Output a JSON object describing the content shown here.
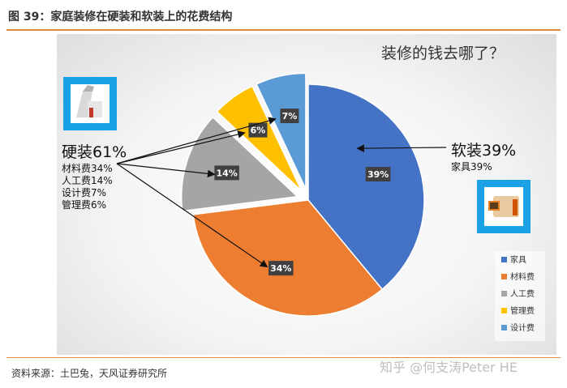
{
  "figure_title": "图 39：家庭装修在硬装和软装上的花费结构",
  "source_note": "资料来源：土巴兔，天风证券研究所",
  "watermark": "知乎 @何支涛Peter HE",
  "chart_data": {
    "type": "pie",
    "title": "装修的钱去哪了？",
    "slices": [
      {
        "name": "家具",
        "value": 39,
        "label": "39%",
        "color": "#4472C4",
        "exploded": false
      },
      {
        "name": "材料费",
        "value": 34,
        "label": "34%",
        "color": "#ED7D31",
        "exploded": false
      },
      {
        "name": "人工费",
        "value": 14,
        "label": "14%",
        "color": "#A5A5A5",
        "exploded": true
      },
      {
        "name": "管理费",
        "value": 6,
        "label": "6%",
        "color": "#FFC000",
        "exploded": true
      },
      {
        "name": "设计费",
        "value": 7,
        "label": "7%",
        "color": "#5B9BD5",
        "exploded": true
      }
    ],
    "legend_position": "bottom-right",
    "annotations": {
      "hard": {
        "title": "硬装61%",
        "lines": [
          "材料费34%",
          "人工费14%",
          "设计费7%",
          "管理费6%"
        ]
      },
      "soft": {
        "title": "软装39%",
        "lines": [
          "家具39%"
        ]
      }
    }
  }
}
